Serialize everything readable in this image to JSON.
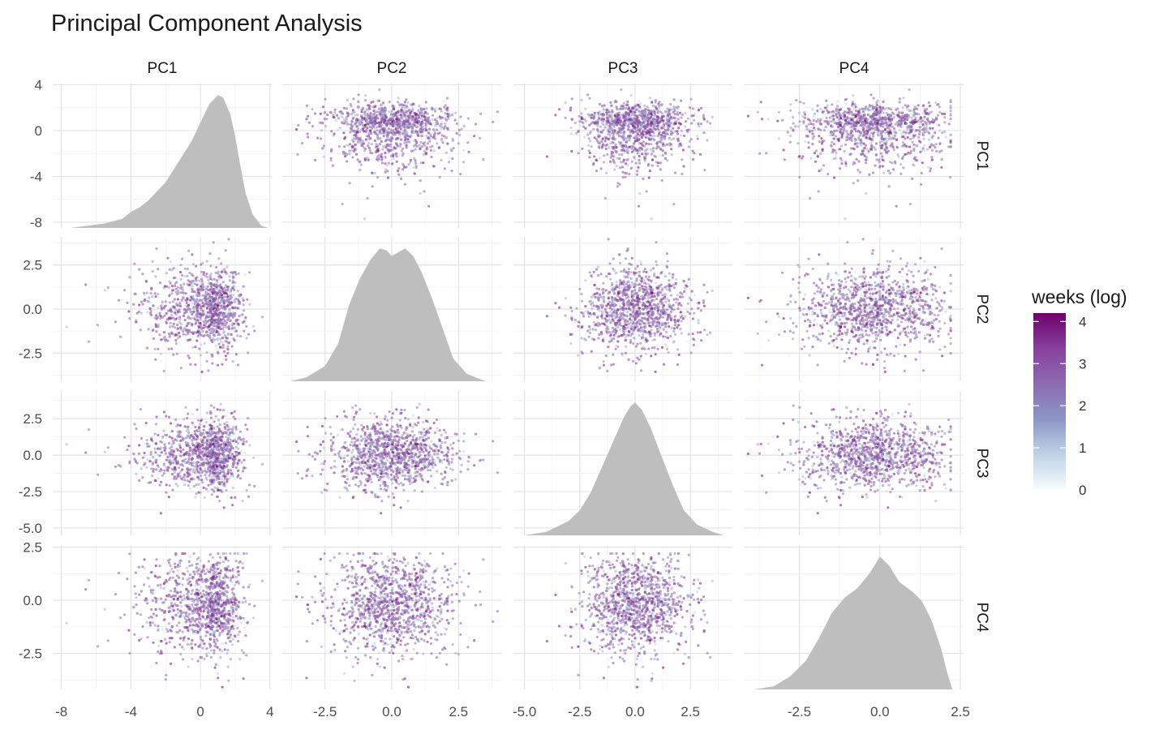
{
  "chart_data": {
    "type": "scatter",
    "title": "Principal Component Analysis",
    "variables": [
      "PC1",
      "PC2",
      "PC3",
      "PC4"
    ],
    "panel_layout": "pairs-matrix: density on diagonal, scatter off-diagonal",
    "grid": true,
    "axes": {
      "PC1": {
        "range": [
          -8.5,
          4.1
        ],
        "ticks": [
          "-8",
          "-4",
          "0",
          "4"
        ],
        "tick_values": [
          -8,
          -4,
          0,
          4
        ]
      },
      "PC2": {
        "range": [
          -4.1,
          4.1
        ],
        "ticks": [
          "-2.5",
          "0.0",
          "2.5"
        ],
        "tick_values": [
          -2.5,
          0,
          2.5
        ]
      },
      "PC3": {
        "range": [
          -5.5,
          4.4
        ],
        "ticks": [
          "-5.0",
          "-2.5",
          "0.0",
          "2.5"
        ],
        "tick_values": [
          -5,
          -2.5,
          0,
          2.5
        ]
      },
      "PC4": {
        "range": [
          -4.2,
          2.6
        ],
        "ticks": [
          "-2.5",
          "0.0",
          "2.5"
        ],
        "tick_values": [
          -2.5,
          0,
          2.5
        ]
      }
    },
    "distributions": {
      "PC1": {
        "mean": 0.5,
        "sd": 1.7,
        "skew": "left"
      },
      "PC2": {
        "mean": 0.0,
        "sd": 1.2
      },
      "PC3": {
        "mean": 0.0,
        "sd": 1.2
      },
      "PC4": {
        "mean": -0.2,
        "sd": 1.15,
        "max": 2.2
      }
    },
    "densities": {
      "PC1": {
        "points": [
          [
            -7.5,
            0.0
          ],
          [
            -6.5,
            0.01
          ],
          [
            -5.5,
            0.02
          ],
          [
            -4.5,
            0.04
          ],
          [
            -4.0,
            0.07
          ],
          [
            -3.5,
            0.09
          ],
          [
            -3.0,
            0.12
          ],
          [
            -2.5,
            0.16
          ],
          [
            -2.0,
            0.2
          ],
          [
            -1.5,
            0.26
          ],
          [
            -1.0,
            0.32
          ],
          [
            -0.5,
            0.38
          ],
          [
            0.0,
            0.46
          ],
          [
            0.5,
            0.54
          ],
          [
            1.0,
            0.58
          ],
          [
            1.3,
            0.57
          ],
          [
            1.7,
            0.5
          ],
          [
            2.0,
            0.4
          ],
          [
            2.3,
            0.27
          ],
          [
            2.6,
            0.15
          ],
          [
            3.0,
            0.06
          ],
          [
            3.5,
            0.01
          ],
          [
            3.9,
            0.0
          ]
        ]
      },
      "PC2": {
        "points": [
          [
            -3.8,
            0.0
          ],
          [
            -3.2,
            0.01
          ],
          [
            -2.5,
            0.04
          ],
          [
            -2.0,
            0.1
          ],
          [
            -1.6,
            0.2
          ],
          [
            -1.2,
            0.27
          ],
          [
            -0.8,
            0.32
          ],
          [
            -0.45,
            0.35
          ],
          [
            -0.2,
            0.345
          ],
          [
            0.0,
            0.33
          ],
          [
            0.25,
            0.34
          ],
          [
            0.5,
            0.35
          ],
          [
            0.8,
            0.33
          ],
          [
            1.1,
            0.29
          ],
          [
            1.5,
            0.22
          ],
          [
            1.9,
            0.14
          ],
          [
            2.3,
            0.06
          ],
          [
            2.8,
            0.02
          ],
          [
            3.5,
            0.0
          ],
          [
            3.9,
            0.0
          ]
        ]
      },
      "PC3": {
        "points": [
          [
            -5.0,
            0.0
          ],
          [
            -4.0,
            0.01
          ],
          [
            -3.0,
            0.04
          ],
          [
            -2.5,
            0.07
          ],
          [
            -2.0,
            0.12
          ],
          [
            -1.5,
            0.19
          ],
          [
            -1.0,
            0.26
          ],
          [
            -0.5,
            0.33
          ],
          [
            -0.2,
            0.36
          ],
          [
            0.0,
            0.37
          ],
          [
            0.3,
            0.35
          ],
          [
            0.7,
            0.3
          ],
          [
            1.2,
            0.22
          ],
          [
            1.7,
            0.14
          ],
          [
            2.2,
            0.07
          ],
          [
            2.8,
            0.03
          ],
          [
            3.5,
            0.01
          ],
          [
            4.0,
            0.0
          ]
        ]
      },
      "PC4": {
        "points": [
          [
            -3.9,
            0.0
          ],
          [
            -3.3,
            0.01
          ],
          [
            -2.8,
            0.04
          ],
          [
            -2.3,
            0.09
          ],
          [
            -1.9,
            0.16
          ],
          [
            -1.5,
            0.24
          ],
          [
            -1.1,
            0.29
          ],
          [
            -0.7,
            0.32
          ],
          [
            -0.3,
            0.37
          ],
          [
            0.0,
            0.42
          ],
          [
            0.3,
            0.39
          ],
          [
            0.6,
            0.34
          ],
          [
            1.0,
            0.31
          ],
          [
            1.3,
            0.28
          ],
          [
            1.6,
            0.22
          ],
          [
            1.9,
            0.13
          ],
          [
            2.1,
            0.05
          ],
          [
            2.25,
            0.0
          ]
        ]
      }
    },
    "color_scale": {
      "label": "weeks (log)",
      "range": [
        0,
        4.2
      ],
      "ticks": [
        "0",
        "1",
        "2",
        "3",
        "4"
      ],
      "tick_values": [
        0,
        1,
        2,
        3,
        4
      ],
      "stops": [
        "#f7fcfd",
        "#bfd3e6",
        "#8c96c6",
        "#8c6bb1",
        "#88419d",
        "#6e016b"
      ]
    },
    "points_per_panel": 1100,
    "point_opacity": 0.55,
    "density_fill": "#bebebe"
  }
}
